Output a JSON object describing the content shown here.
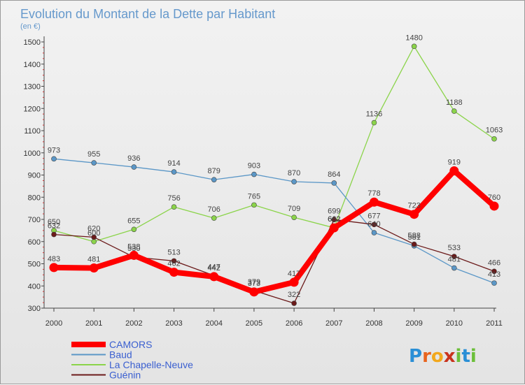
{
  "chart_data": {
    "type": "line",
    "title": "Evolution du Montant de la Dette par Habitant",
    "subtitle": "(en €)",
    "x": [
      "2000",
      "2001",
      "2002",
      "2003",
      "2004",
      "2005",
      "2006",
      "2007",
      "2008",
      "2009",
      "2010",
      "2011"
    ],
    "ylim": [
      300,
      1500
    ],
    "yticks": [
      "300",
      "400",
      "500",
      "600",
      "700",
      "800",
      "900",
      "1000",
      "1100",
      "1200",
      "1300",
      "1400",
      "1500"
    ],
    "grid": false,
    "legend_position": "bottom-left",
    "series": [
      {
        "name": "CAMORS",
        "color": "#ff0000",
        "values": [
          483,
          481,
          538,
          462,
          442,
          373,
          417,
          662,
          778,
          723,
          919,
          760
        ]
      },
      {
        "name": "Baud",
        "color": "#5b97c7",
        "values": [
          973,
          955,
          936,
          914,
          879,
          903,
          870,
          864,
          640,
          581,
          481,
          413
        ]
      },
      {
        "name": "La Chapelle-Neuve",
        "color": "#8bd44a",
        "values": [
          650,
          600,
          655,
          756,
          706,
          765,
          709,
          662,
          1136,
          1480,
          1188,
          1063
        ]
      },
      {
        "name": "Guénin",
        "color": "#6b1a1a",
        "values": [
          632,
          620,
          530,
          513,
          447,
          379,
          322,
          699,
          677,
          588,
          533,
          466
        ]
      }
    ]
  },
  "logo": {
    "text": "Proxiti",
    "letters": [
      "P",
      "r",
      "o",
      "x",
      "i",
      "t",
      "i"
    ],
    "colors": [
      "#2a8fd6",
      "#e8641e",
      "#f2a81d",
      "#c9331d",
      "#6cbf3a",
      "#2a8fd6",
      "#6cbf3a"
    ]
  }
}
